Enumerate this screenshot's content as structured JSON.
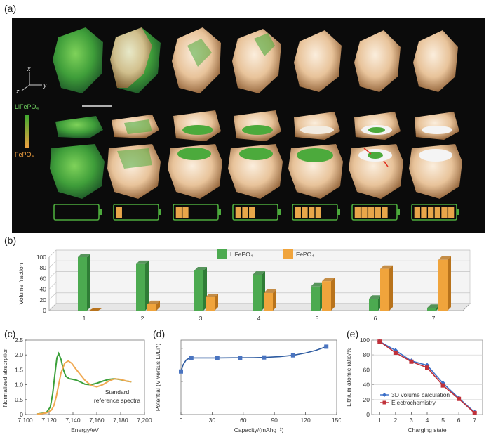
{
  "labels": {
    "a": "(a)",
    "b": "(b)",
    "c": "(c)",
    "d": "(d)",
    "e": "(e)"
  },
  "panel_a": {
    "axis_x": "x",
    "axis_y": "y",
    "axis_z": "z",
    "legend_top": "LiFePO₄",
    "legend_bottom": "FePO₄",
    "battery_fill_counts": [
      0,
      1,
      2,
      3,
      4,
      5,
      6
    ],
    "colors": {
      "lifepo4": "#4caa3c",
      "fepo4": "#e8a64a",
      "background": "#0b0b0b"
    }
  },
  "chart_data": [
    {
      "id": "b",
      "type": "bar",
      "ylabel": "Volume fraction",
      "ylim": [
        0,
        100
      ],
      "yticks": [
        0,
        20,
        40,
        60,
        80,
        100
      ],
      "categories": [
        "1",
        "2",
        "3",
        "4",
        "5",
        "6",
        "7"
      ],
      "series": [
        {
          "name": "LiFePO₄",
          "color": "#4caa50",
          "values": [
            100,
            87,
            75,
            67,
            45,
            22,
            5
          ]
        },
        {
          "name": "FePO₄",
          "color": "#f0a43c",
          "values": [
            0,
            12,
            25,
            33,
            55,
            78,
            95
          ]
        }
      ],
      "grid": true,
      "legend": "top"
    },
    {
      "id": "c",
      "type": "line",
      "xlabel": "Energy/eV",
      "ylabel": "Normalized absorption",
      "xlim": [
        7100,
        7200
      ],
      "ylim": [
        0,
        2.5
      ],
      "xticks": [
        7100,
        7120,
        7140,
        7160,
        7180,
        7200
      ],
      "xtick_labels": [
        "7,100",
        "7,120",
        "7,140",
        "7,160",
        "7,180",
        "7,200"
      ],
      "yticks": [
        0,
        0.5,
        1.0,
        1.5,
        2.0,
        2.5
      ],
      "annotation": [
        "Standard",
        "reference spectra"
      ],
      "series": [
        {
          "color": "#3aa03a",
          "x": [
            7110,
            7114,
            7118,
            7121,
            7123,
            7125,
            7126.5,
            7128,
            7130,
            7132,
            7134,
            7137,
            7140,
            7143,
            7146,
            7150,
            7155,
            7160,
            7165,
            7170,
            7175,
            7180,
            7185,
            7189
          ],
          "y": [
            0.02,
            0.04,
            0.08,
            0.25,
            0.7,
            1.4,
            1.9,
            2.05,
            1.85,
            1.5,
            1.28,
            1.2,
            1.18,
            1.15,
            1.1,
            1.02,
            1.0,
            1.05,
            1.12,
            1.18,
            1.2,
            1.17,
            1.12,
            1.1
          ]
        },
        {
          "color": "#f0a850",
          "x": [
            7110,
            7114,
            7118,
            7122,
            7124,
            7126,
            7128,
            7130,
            7133,
            7136,
            7139,
            7142,
            7146,
            7150,
            7155,
            7160,
            7165,
            7170,
            7175,
            7180,
            7185,
            7189
          ],
          "y": [
            0.02,
            0.03,
            0.06,
            0.15,
            0.3,
            0.6,
            1.0,
            1.4,
            1.72,
            1.8,
            1.72,
            1.55,
            1.35,
            1.15,
            0.98,
            0.93,
            1.0,
            1.12,
            1.2,
            1.18,
            1.12,
            1.1
          ]
        }
      ]
    },
    {
      "id": "d",
      "type": "line",
      "xlabel": "Capacity/(mAhg⁻¹)",
      "ylabel": "Potential (V versus Li/Li⁺)",
      "xlim": [
        0,
        150
      ],
      "ylim": [
        0,
        4.5
      ],
      "xticks": [
        0,
        30,
        60,
        90,
        120,
        150
      ],
      "markers": {
        "x": [
          0,
          10,
          35,
          57,
          80,
          108,
          140
        ],
        "y": [
          2.6,
          3.42,
          3.42,
          3.43,
          3.45,
          3.58,
          4.1
        ]
      },
      "series": [
        {
          "color": "#2c5aa0",
          "x": [
            0,
            2,
            5,
            8,
            10,
            15,
            25,
            35,
            50,
            57,
            70,
            80,
            95,
            108,
            120,
            130,
            140
          ],
          "y": [
            2.6,
            3.0,
            3.3,
            3.4,
            3.42,
            3.42,
            3.42,
            3.42,
            3.43,
            3.43,
            3.44,
            3.45,
            3.5,
            3.58,
            3.72,
            3.88,
            4.1
          ]
        }
      ]
    },
    {
      "id": "e",
      "type": "line",
      "xlabel": "Charging state",
      "ylabel": "Lithium atomic ratio/%",
      "xlim": [
        0.5,
        7.5
      ],
      "ylim": [
        0,
        100
      ],
      "xticks": [
        1,
        2,
        3,
        4,
        5,
        6,
        7
      ],
      "yticks": [
        0,
        20,
        40,
        60,
        80,
        100
      ],
      "categories": [
        "1",
        "2",
        "3",
        "4",
        "5",
        "6",
        "7"
      ],
      "series": [
        {
          "name": "3D volume calculation",
          "color": "#3a6ec8",
          "marker": "diamond",
          "values": [
            98,
            86,
            72,
            66,
            42,
            22,
            3
          ]
        },
        {
          "name": "Electrochemistry",
          "color": "#c0313a",
          "marker": "square",
          "values": [
            98,
            83,
            71,
            63,
            39,
            21,
            2
          ]
        }
      ],
      "legend": "bottom-left"
    }
  ]
}
